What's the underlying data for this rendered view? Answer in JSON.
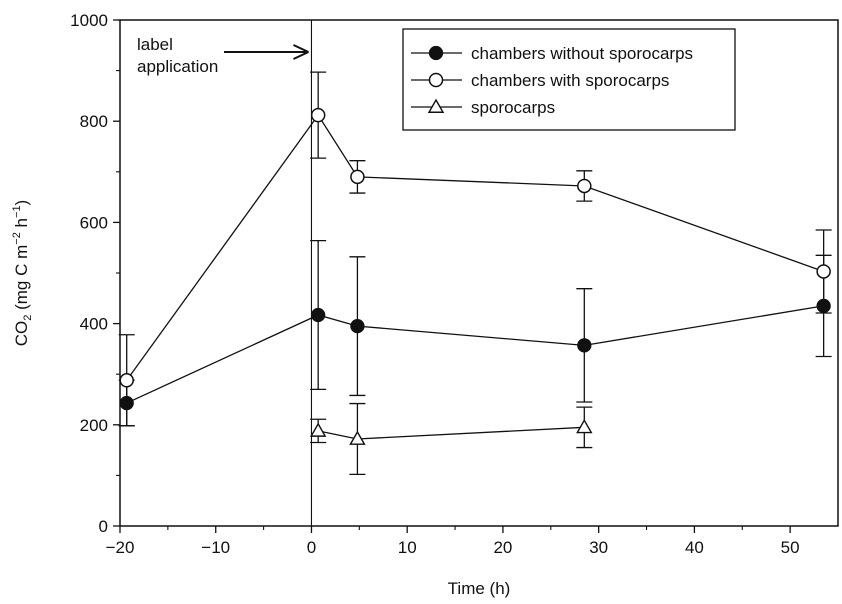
{
  "chart_data": {
    "type": "scatter",
    "xlabel": "Time (h)",
    "ylabel": {
      "base": "CO",
      "sub": "2",
      "rest1": " (mg C m",
      "sup1": "−2",
      "rest2": " h",
      "sup2": "−1",
      "rest3": ")"
    },
    "xlim": [
      -20,
      55
    ],
    "ylim": [
      0,
      1000
    ],
    "xticks": [
      -20,
      -10,
      0,
      10,
      20,
      30,
      40,
      50
    ],
    "xtick_labels": [
      "−20",
      "−10",
      "0",
      "10",
      "20",
      "30",
      "40",
      "50"
    ],
    "yticks": [
      0,
      200,
      400,
      600,
      800,
      1000
    ],
    "ytick_labels": [
      "0",
      "200",
      "400",
      "600",
      "800",
      "1000"
    ],
    "grid": false,
    "legend_position": "top-right",
    "annotation": {
      "lines": [
        "label",
        "application"
      ],
      "x": 0
    },
    "series": [
      {
        "name": "chambers without sporocarps",
        "marker": "filled-circle",
        "color": "#111111",
        "x": [
          -19.3,
          0.7,
          4.8,
          28.5,
          53.5
        ],
        "y": [
          243,
          417,
          395,
          357,
          435
        ],
        "err": [
          45,
          147,
          137,
          112,
          100
        ]
      },
      {
        "name": "chambers with sporocarps",
        "marker": "open-circle",
        "color": "#111111",
        "x": [
          -19.3,
          0.7,
          4.8,
          28.5,
          53.5
        ],
        "y": [
          288,
          812,
          690,
          672,
          503
        ],
        "err": [
          90,
          85,
          32,
          30,
          82
        ]
      },
      {
        "name": "sporocarps",
        "marker": "open-triangle",
        "color": "#111111",
        "x": [
          0.7,
          4.8,
          28.5
        ],
        "y": [
          188,
          172,
          195
        ],
        "err": [
          23,
          70,
          40
        ]
      }
    ]
  }
}
